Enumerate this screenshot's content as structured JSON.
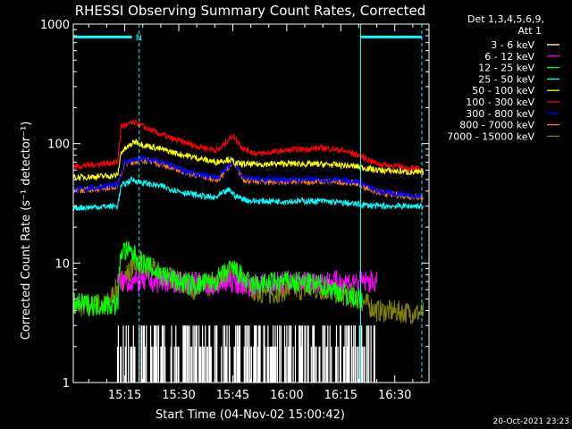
{
  "chart_data": {
    "type": "line",
    "title": "RHESSI Observing Summary Count Rates, Corrected",
    "xlabel": "Start Time (04-Nov-02 15:00:42)",
    "ylabel": "Corrected Count Rate (s⁻¹ detector⁻¹)",
    "yscale": "log",
    "ylim": [
      1,
      1000
    ],
    "xlim": [
      "15:00:42",
      "16:39:30"
    ],
    "x_ticks": [
      "15:15",
      "15:30",
      "15:45",
      "16:00",
      "16:15",
      "16:30"
    ],
    "y_ticks": [
      "1",
      "10",
      "100",
      "1000"
    ],
    "legend_header": [
      "Det 1,3,4,5,6,9,",
      "Att 1"
    ],
    "legend_position": "right",
    "footer_date": "20-Oct-2021 23:23",
    "flag_label": "N",
    "vertical_markers": [
      {
        "time": "15:00:42",
        "style": "solid"
      },
      {
        "time": "15:19:00",
        "style": "dashed"
      },
      {
        "time": "16:20:30",
        "style": "solid"
      },
      {
        "time": "16:37:30",
        "style": "dashed"
      }
    ],
    "flag_bars": [
      {
        "start": "15:00:42",
        "end": "15:17:00",
        "y": 780
      },
      {
        "start": "16:20:30",
        "end": "16:37:30",
        "y": 780
      }
    ],
    "series": [
      {
        "name": "3 - 6 keV",
        "color": "#ffffff",
        "style": "noise_low",
        "t": [
          "15:13",
          "15:45",
          "16:22"
        ],
        "v": [
          2.2,
          2.2,
          2.2
        ],
        "range": [
          "15:13",
          "16:25"
        ]
      },
      {
        "name": "6 - 12 keV",
        "color": "#ff00ff",
        "t": [
          "15:13",
          "15:20",
          "15:30",
          "15:40",
          "15:45",
          "15:50",
          "16:00",
          "16:10",
          "16:15",
          "16:25"
        ],
        "v": [
          7,
          7,
          7,
          6.5,
          7,
          6.5,
          7,
          7,
          7,
          7
        ],
        "range": [
          "15:13",
          "16:25"
        ]
      },
      {
        "name": "12 - 25 keV",
        "color": "#00ff00",
        "t": [
          "15:00:42",
          "15:13",
          "15:14",
          "15:17",
          "15:20",
          "15:25",
          "15:30",
          "15:35",
          "15:40",
          "15:45",
          "15:50",
          "16:00",
          "16:10",
          "16:20"
        ],
        "v": [
          4.5,
          4.5,
          13,
          12,
          10,
          8,
          7,
          6.5,
          7,
          9,
          6.5,
          7,
          6.5,
          5
        ],
        "range": [
          "15:00:42",
          "16:21"
        ]
      },
      {
        "name": "25 - 50 keV",
        "color": "#00ffff",
        "t": [
          "15:00:42",
          "15:13",
          "15:14",
          "15:17",
          "15:20",
          "15:25",
          "15:30",
          "15:35",
          "15:40",
          "15:44",
          "15:46",
          "15:50",
          "16:00",
          "16:10",
          "16:15",
          "16:25",
          "16:38"
        ],
        "v": [
          29,
          30,
          44,
          50,
          47,
          44,
          40,
          37,
          35,
          41,
          36,
          33,
          33,
          33,
          32,
          30,
          30
        ],
        "range": [
          "15:00:42",
          "16:38"
        ]
      },
      {
        "name": "50 - 100 keV",
        "color": "#ffff00",
        "t": [
          "15:00:42",
          "15:13",
          "15:14",
          "15:18",
          "15:20",
          "15:25",
          "15:30",
          "15:35",
          "15:40",
          "15:44",
          "15:46",
          "15:50",
          "16:00",
          "16:10",
          "16:15",
          "16:20",
          "16:25",
          "16:38"
        ],
        "v": [
          52,
          54,
          85,
          105,
          98,
          90,
          82,
          76,
          70,
          74,
          68,
          67,
          68,
          67,
          66,
          64,
          60,
          57
        ],
        "range": [
          "15:00:42",
          "16:38"
        ]
      },
      {
        "name": "100 - 300 keV",
        "color": "#ff0000",
        "t": [
          "15:00:42",
          "15:13",
          "15:14",
          "15:18",
          "15:22",
          "15:28",
          "15:35",
          "15:41",
          "15:45",
          "15:48",
          "15:52",
          "16:00",
          "16:10",
          "16:15",
          "16:20",
          "16:25",
          "16:38"
        ],
        "v": [
          64,
          70,
          140,
          150,
          130,
          110,
          95,
          88,
          118,
          90,
          82,
          88,
          92,
          88,
          80,
          68,
          60
        ],
        "range": [
          "15:00:42",
          "16:38"
        ]
      },
      {
        "name": "300 - 800 keV",
        "color": "#0000ff",
        "t": [
          "15:00:42",
          "15:13",
          "15:15",
          "15:20",
          "15:25",
          "15:30",
          "15:35",
          "15:41",
          "15:45",
          "15:48",
          "15:52",
          "16:00",
          "16:10",
          "16:15",
          "16:20",
          "16:25",
          "16:38"
        ],
        "v": [
          41,
          45,
          70,
          75,
          70,
          62,
          55,
          52,
          72,
          52,
          50,
          50,
          50,
          50,
          48,
          40,
          36
        ],
        "range": [
          "15:00:42",
          "16:38"
        ]
      },
      {
        "name": "800 - 7000 keV",
        "color": "#ff8000",
        "t": [
          "15:00:42",
          "15:13",
          "15:15",
          "15:20",
          "15:25",
          "15:30",
          "15:35",
          "15:41",
          "15:45",
          "15:48",
          "15:52",
          "16:00",
          "16:10",
          "16:15",
          "16:20",
          "16:25",
          "16:38"
        ],
        "v": [
          40,
          44,
          68,
          73,
          68,
          60,
          54,
          50,
          70,
          50,
          48,
          48,
          48,
          48,
          46,
          39,
          35
        ],
        "range": [
          "15:00:42",
          "16:38"
        ]
      },
      {
        "name": "7000 - 15000 keV",
        "color": "#808000",
        "t": [
          "15:00:42",
          "15:10",
          "15:14",
          "15:18",
          "15:22",
          "15:26",
          "15:30",
          "15:35",
          "15:40",
          "15:45",
          "15:50",
          "15:55",
          "16:00",
          "16:10",
          "16:20",
          "16:25",
          "16:38"
        ],
        "v": [
          4.3,
          4.5,
          7,
          10,
          9,
          8,
          7,
          6,
          6.5,
          9,
          6,
          5.5,
          6,
          6,
          5,
          4,
          3.8
        ],
        "range": [
          "15:00:42",
          "16:38"
        ]
      }
    ]
  }
}
